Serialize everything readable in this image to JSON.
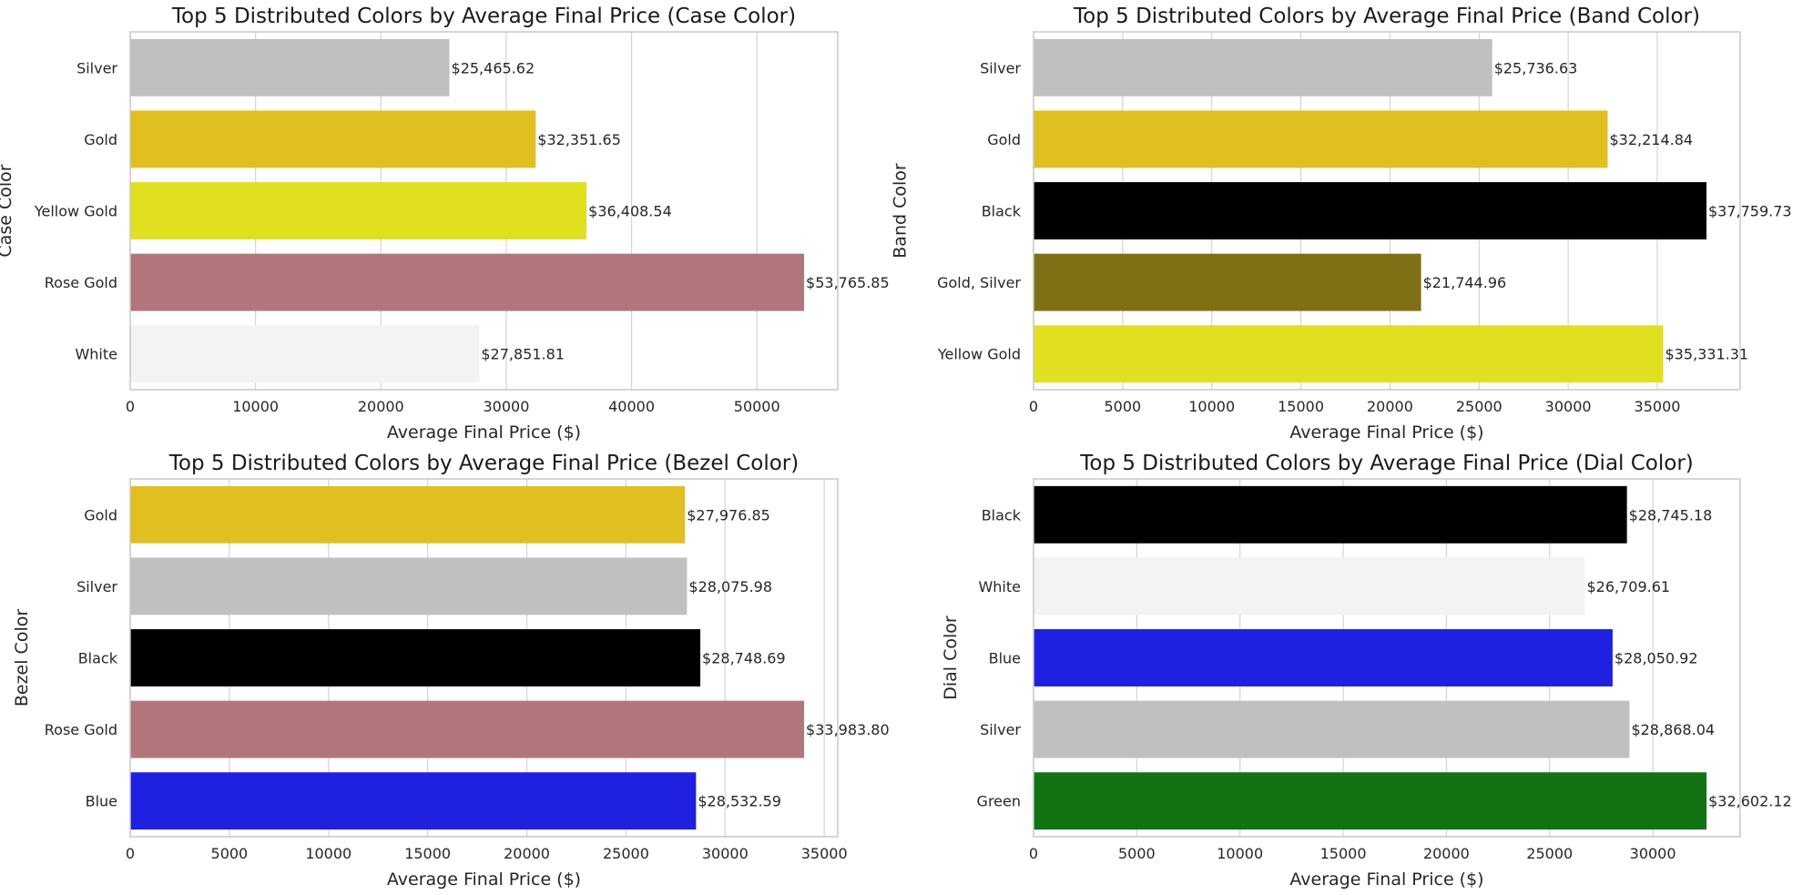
{
  "chart_data": [
    {
      "type": "bar",
      "orientation": "horizontal",
      "title": "Top 5 Distributed Colors by Average Final Price (Case Color)",
      "xlabel": "Average Final Price ($)",
      "ylabel": "Case Color",
      "categories": [
        "Silver",
        "Gold",
        "Yellow Gold",
        "Rose Gold",
        "White"
      ],
      "values": [
        25465.62,
        32351.65,
        36408.54,
        53765.85,
        27851.81
      ],
      "value_labels": [
        "$25,465.62",
        "$32,351.65",
        "$36,408.54",
        "$53,765.85",
        "$27,851.81"
      ],
      "colors": [
        "#c0c0c0",
        "#e0c020",
        "#e0e020",
        "#b0767c",
        "#f2f3f4"
      ],
      "xlim": [
        0,
        56450
      ],
      "xticks": [
        0,
        10000,
        20000,
        30000,
        40000,
        50000
      ],
      "grid": true
    },
    {
      "type": "bar",
      "orientation": "horizontal",
      "title": "Top 5 Distributed Colors by Average Final Price (Band Color)",
      "xlabel": "Average Final Price ($)",
      "ylabel": "Band Color",
      "categories": [
        "Silver",
        "Gold",
        "Black",
        "Gold, Silver",
        "Yellow Gold"
      ],
      "values": [
        25736.63,
        32214.84,
        37759.73,
        21744.96,
        35331.31
      ],
      "value_labels": [
        "$25,736.63",
        "$32,214.84",
        "$37,759.73",
        "$21,744.96",
        "$35,331.31"
      ],
      "colors": [
        "#c0c0c0",
        "#e0c020",
        "#000000",
        "#7f7015",
        "#e0e020"
      ],
      "xlim": [
        0,
        39650
      ],
      "xticks": [
        0,
        5000,
        10000,
        15000,
        20000,
        25000,
        30000,
        35000
      ],
      "grid": true
    },
    {
      "type": "bar",
      "orientation": "horizontal",
      "title": "Top 5 Distributed Colors by Average Final Price (Bezel Color)",
      "xlabel": "Average Final Price ($)",
      "ylabel": "Bezel Color",
      "categories": [
        "Gold",
        "Silver",
        "Black",
        "Rose Gold",
        "Blue"
      ],
      "values": [
        27976.85,
        28075.98,
        28748.69,
        33983.8,
        28532.59
      ],
      "value_labels": [
        "$27,976.85",
        "$28,075.98",
        "$28,748.69",
        "$33,983.80",
        "$28,532.59"
      ],
      "colors": [
        "#e0c020",
        "#c0c0c0",
        "#000000",
        "#b0767c",
        "#2020e0"
      ],
      "xlim": [
        0,
        35680
      ],
      "xticks": [
        0,
        5000,
        10000,
        15000,
        20000,
        25000,
        30000,
        35000
      ],
      "grid": true
    },
    {
      "type": "bar",
      "orientation": "horizontal",
      "title": "Top 5 Distributed Colors by Average Final Price (Dial Color)",
      "xlabel": "Average Final Price ($)",
      "ylabel": "Dial Color",
      "categories": [
        "Black",
        "White",
        "Blue",
        "Silver",
        "Green"
      ],
      "values": [
        28745.18,
        26709.61,
        28050.92,
        28868.04,
        32602.12
      ],
      "value_labels": [
        "$28,745.18",
        "$26,709.61",
        "$28,050.92",
        "$28,868.04",
        "$32,602.12"
      ],
      "colors": [
        "#000000",
        "#f2f3f4",
        "#2020e0",
        "#c0c0c0",
        "#127312"
      ],
      "xlim": [
        0,
        34230
      ],
      "xticks": [
        0,
        5000,
        10000,
        15000,
        20000,
        25000,
        30000
      ],
      "grid": true
    }
  ]
}
